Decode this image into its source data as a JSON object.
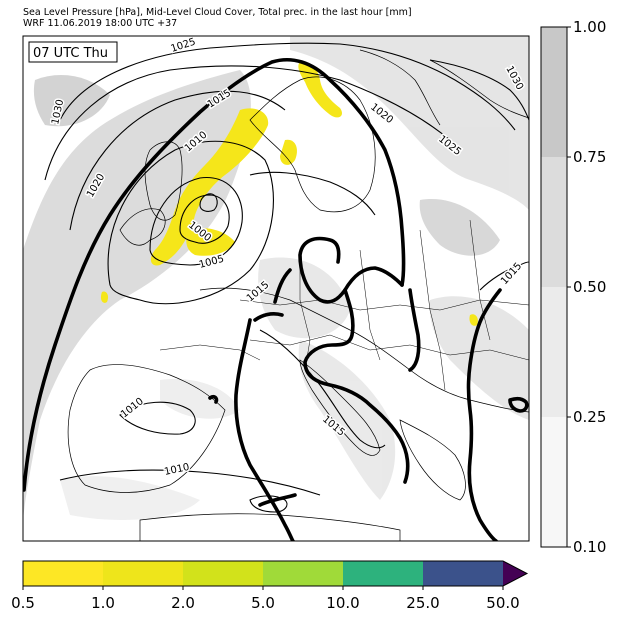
{
  "header": {
    "line1": "Sea Level Pressure [hPa], Mid-Level Cloud Cover, Total prec. in the last hour [mm]",
    "line2": "WRF 11.06.2019 18:00 UTC +37"
  },
  "map": {
    "time_label": "07 UTC Thu",
    "isobar_labels": [
      "1025",
      "1030",
      "1015",
      "1020",
      "1010",
      "1005",
      "1000",
      "1020",
      "1025",
      "1030",
      "1015",
      "1015",
      "1010",
      "1010",
      "1015"
    ],
    "colors": {
      "sea": "#ffffff",
      "land_outline": "#000000",
      "cloud_light": "#e6e6e6",
      "cloud_mid": "#cfcfcf",
      "cloud_dark": "#bdbdbd",
      "isobar": "#000000",
      "precip": "#f5e61a"
    }
  },
  "cloud_colorbar": {
    "ticks": [
      "1.00",
      "0.75",
      "0.50",
      "0.25",
      "0.10"
    ],
    "colors": [
      "#c8c8c8",
      "#dcdcdc",
      "#ebebeb",
      "#f7f7f7"
    ]
  },
  "precip_colorbar": {
    "ticks": [
      "0.5",
      "1.0",
      "2.0",
      "5.0",
      "10.0",
      "25.0",
      "50.0"
    ],
    "colors": [
      "#fde725",
      "#eee51b",
      "#d2e21b",
      "#a0da39",
      "#2db27d",
      "#3b528b",
      "#440154"
    ]
  }
}
